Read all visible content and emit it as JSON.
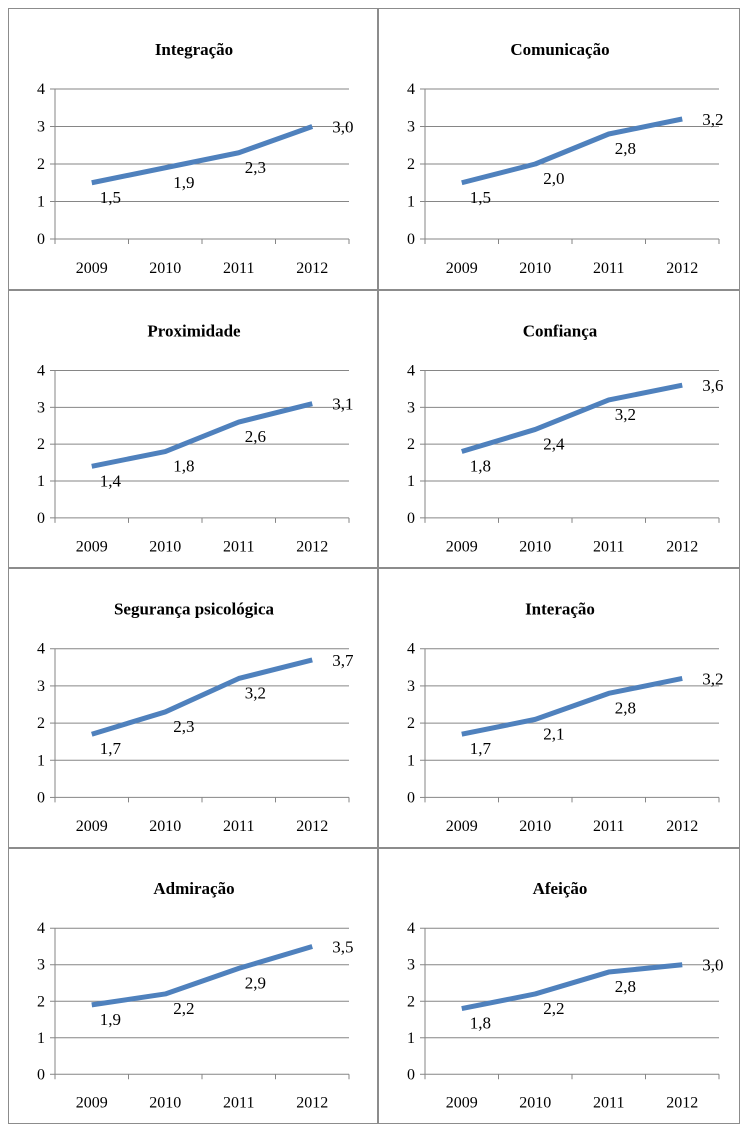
{
  "chart_data": [
    {
      "type": "line",
      "title": "Integração",
      "categories": [
        "2009",
        "2010",
        "2011",
        "2012"
      ],
      "values": [
        1.5,
        1.9,
        2.3,
        3.0
      ],
      "value_labels": [
        "1,5",
        "1,9",
        "2,3",
        "3,0"
      ],
      "y_ticks": [
        "0",
        "1",
        "2",
        "3",
        "4"
      ],
      "ylim": [
        0,
        4
      ],
      "grid": true,
      "line_color": "#4F81BD"
    },
    {
      "type": "line",
      "title": "Comunicação",
      "categories": [
        "2009",
        "2010",
        "2011",
        "2012"
      ],
      "values": [
        1.5,
        2.0,
        2.8,
        3.2
      ],
      "value_labels": [
        "1,5",
        "2,0",
        "2,8",
        "3,2"
      ],
      "y_ticks": [
        "0",
        "1",
        "2",
        "3",
        "4"
      ],
      "ylim": [
        0,
        4
      ],
      "grid": true,
      "line_color": "#4F81BD"
    },
    {
      "type": "line",
      "title": "Proximidade",
      "categories": [
        "2009",
        "2010",
        "2011",
        "2012"
      ],
      "values": [
        1.4,
        1.8,
        2.6,
        3.1
      ],
      "value_labels": [
        "1,4",
        "1,8",
        "2,6",
        "3,1"
      ],
      "y_ticks": [
        "0",
        "1",
        "2",
        "3",
        "4"
      ],
      "ylim": [
        0,
        4
      ],
      "grid": true,
      "line_color": "#4F81BD"
    },
    {
      "type": "line",
      "title": "Confiança",
      "categories": [
        "2009",
        "2010",
        "2011",
        "2012"
      ],
      "values": [
        1.8,
        2.4,
        3.2,
        3.6
      ],
      "value_labels": [
        "1,8",
        "2,4",
        "3,2",
        "3,6"
      ],
      "y_ticks": [
        "0",
        "1",
        "2",
        "3",
        "4"
      ],
      "ylim": [
        0,
        4
      ],
      "grid": true,
      "line_color": "#4F81BD"
    },
    {
      "type": "line",
      "title": "Segurança psicológica",
      "categories": [
        "2009",
        "2010",
        "2011",
        "2012"
      ],
      "values": [
        1.7,
        2.3,
        3.2,
        3.7
      ],
      "value_labels": [
        "1,7",
        "2,3",
        "3,2",
        "3,7"
      ],
      "y_ticks": [
        "0",
        "1",
        "2",
        "3",
        "4"
      ],
      "ylim": [
        0,
        4
      ],
      "grid": true,
      "line_color": "#4F81BD"
    },
    {
      "type": "line",
      "title": "Interação",
      "categories": [
        "2009",
        "2010",
        "2011",
        "2012"
      ],
      "values": [
        1.7,
        2.1,
        2.8,
        3.2
      ],
      "value_labels": [
        "1,7",
        "2,1",
        "2,8",
        "3,2"
      ],
      "y_ticks": [
        "0",
        "1",
        "2",
        "3",
        "4"
      ],
      "ylim": [
        0,
        4
      ],
      "grid": true,
      "line_color": "#4F81BD"
    },
    {
      "type": "line",
      "title": "Admiração",
      "categories": [
        "2009",
        "2010",
        "2011",
        "2012"
      ],
      "values": [
        1.9,
        2.2,
        2.9,
        3.5
      ],
      "value_labels": [
        "1,9",
        "2,2",
        "2,9",
        "3,5"
      ],
      "y_ticks": [
        "0",
        "1",
        "2",
        "3",
        "4"
      ],
      "ylim": [
        0,
        4
      ],
      "grid": true,
      "line_color": "#4F81BD"
    },
    {
      "type": "line",
      "title": "Afeição",
      "categories": [
        "2009",
        "2010",
        "2011",
        "2012"
      ],
      "values": [
        1.8,
        2.2,
        2.8,
        3.0
      ],
      "value_labels": [
        "1,8",
        "2,2",
        "2,8",
        "3,0"
      ],
      "y_ticks": [
        "0",
        "1",
        "2",
        "3",
        "4"
      ],
      "ylim": [
        0,
        4
      ],
      "grid": true,
      "line_color": "#4F81BD"
    }
  ]
}
